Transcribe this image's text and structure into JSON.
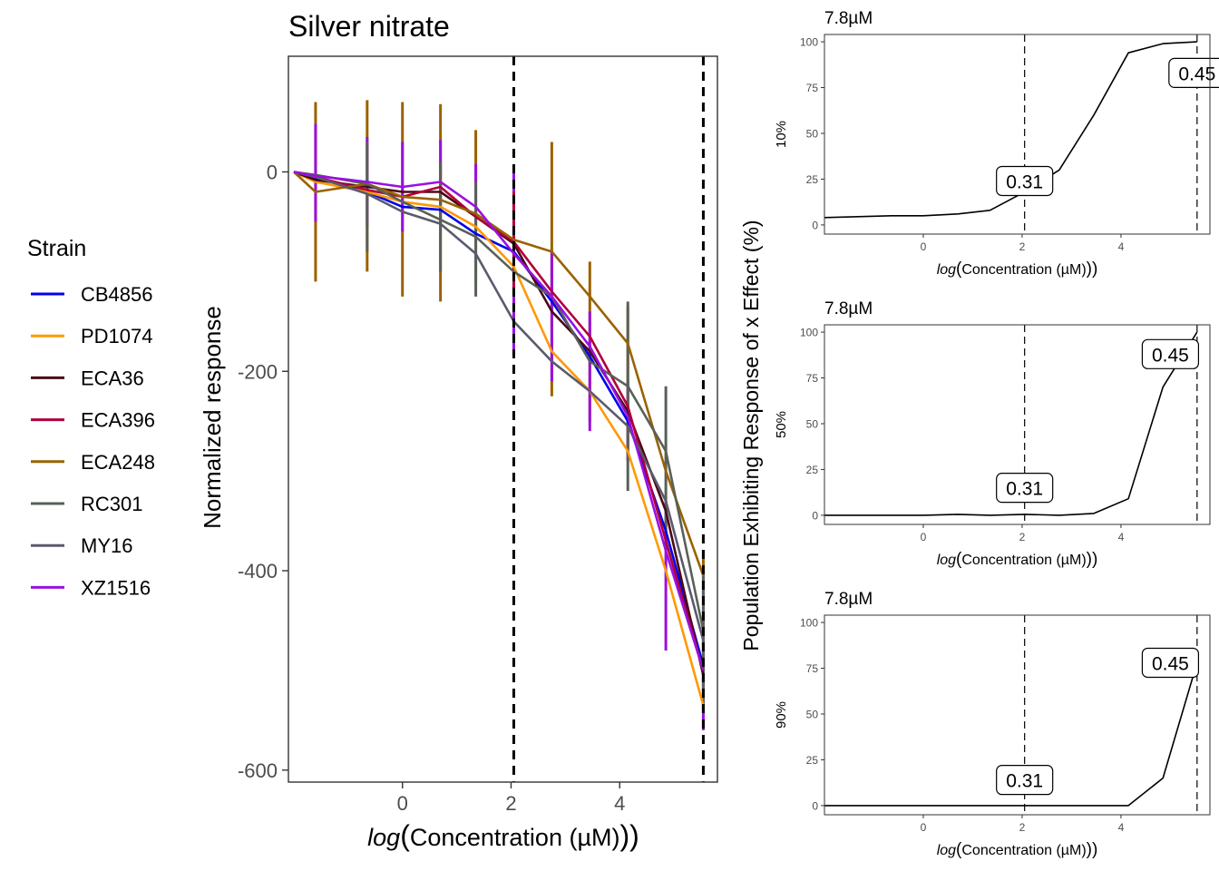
{
  "chart_data": [
    {
      "type": "line",
      "title": "Silver nitrate",
      "xlabel": {
        "italic": "log",
        "rest": "Concentration (µM)"
      },
      "ylabel": "Normalized response",
      "xlim": [
        -2.1,
        5.8
      ],
      "ylim": [
        -612,
        116
      ],
      "xticks": [
        0,
        2,
        4
      ],
      "yticks": [
        -600,
        -400,
        -200,
        0
      ],
      "vlines": [
        2.05,
        5.54
      ],
      "grid": false,
      "legend": {
        "title": "Strain",
        "position": "left",
        "entries": [
          {
            "name": "CB4856",
            "color": "#0000ee"
          },
          {
            "name": "PD1074",
            "color": "#ff9900"
          },
          {
            "name": "ECA36",
            "color": "#4b0a14"
          },
          {
            "name": "ECA396",
            "color": "#b0003a"
          },
          {
            "name": "ECA248",
            "color": "#9a6200"
          },
          {
            "name": "RC301",
            "color": "#586058"
          },
          {
            "name": "MY16",
            "color": "#5a5a6e"
          },
          {
            "name": "XZ1516",
            "color": "#9a10e0"
          }
        ]
      },
      "x": [
        -2.0,
        -1.6,
        -0.65,
        0,
        0.7,
        1.35,
        2.05,
        2.75,
        3.45,
        4.15,
        4.85,
        5.54
      ],
      "series": [
        {
          "name": "CB4856",
          "color": "#0000ee",
          "values": [
            0,
            -6,
            -20,
            -35,
            -38,
            -62,
            -80,
            -130,
            -185,
            -250,
            -360,
            -495
          ]
        },
        {
          "name": "PD1074",
          "color": "#ff9900",
          "values": [
            0,
            -10,
            -20,
            -30,
            -35,
            -55,
            -95,
            -180,
            -220,
            -280,
            -400,
            -535
          ]
        },
        {
          "name": "ECA36",
          "color": "#4b0a14",
          "values": [
            0,
            -8,
            -15,
            -20,
            -20,
            -45,
            -72,
            -140,
            -180,
            -240,
            -340,
            -505
          ]
        },
        {
          "name": "ECA396",
          "color": "#b0003a",
          "values": [
            0,
            -5,
            -18,
            -25,
            -15,
            -45,
            -70,
            -120,
            -165,
            -235,
            -370,
            -500
          ]
        },
        {
          "name": "ECA248",
          "color": "#9a6200",
          "values": [
            0,
            -20,
            -12,
            -25,
            -28,
            -42,
            -68,
            -80,
            -125,
            -172,
            -300,
            -405
          ]
        },
        {
          "name": "RC301",
          "color": "#586058",
          "values": [
            0,
            -3,
            -12,
            -30,
            -48,
            -65,
            -100,
            -125,
            -190,
            -215,
            -280,
            -460
          ]
        },
        {
          "name": "MY16",
          "color": "#5a5a6e",
          "values": [
            0,
            -5,
            -22,
            -40,
            -52,
            -82,
            -150,
            -190,
            -220,
            -255,
            -330,
            -470
          ]
        },
        {
          "name": "XZ1516",
          "color": "#9a10e0",
          "values": [
            0,
            -4,
            -10,
            -15,
            -10,
            -35,
            -82,
            -125,
            -175,
            -245,
            -380,
            -500
          ]
        }
      ],
      "errorbars": [
        {
          "series": "ECA248",
          "x": [
            -1.6,
            -0.65,
            0,
            0.7,
            1.35,
            2.75,
            3.45,
            4.15,
            5.54
          ],
          "lo": [
            -110,
            -100,
            -125,
            -130,
            -110,
            -225,
            -250,
            -290,
            -540
          ],
          "hi": [
            70,
            72,
            70,
            68,
            42,
            30,
            -90,
            -135,
            -380
          ]
        },
        {
          "series": "XZ1516",
          "x": [
            -1.6,
            -0.65,
            0,
            0.7,
            1.35,
            2.05,
            2.75,
            3.45,
            4.15,
            4.85,
            5.54
          ],
          "lo": [
            -50,
            -55,
            -60,
            -50,
            -70,
            -180,
            -210,
            -260,
            -290,
            -480,
            -560
          ],
          "hi": [
            48,
            35,
            30,
            32,
            8,
            0,
            -80,
            -140,
            -210,
            -330,
            -470
          ]
        },
        {
          "series": "RC301",
          "x": [
            -0.65,
            0.7,
            1.35,
            4.15,
            4.85,
            5.54
          ],
          "lo": [
            -80,
            -100,
            -125,
            -320,
            -360,
            -540
          ],
          "hi": [
            30,
            10,
            -10,
            -130,
            -215,
            -400
          ]
        },
        {
          "series": "ECA396",
          "x": [
            2.05
          ],
          "lo": [
            -120
          ],
          "hi": [
            -20
          ]
        }
      ]
    },
    {
      "type": "line",
      "title": "7.8µM",
      "ylabel": "10%",
      "xlabel": {
        "italic": "log",
        "rest": "Concentration (µM)"
      },
      "xlim": [
        -2.0,
        5.8
      ],
      "ylim": [
        -5,
        104
      ],
      "xticks": [
        0,
        2,
        4
      ],
      "yticks": [
        0,
        25,
        50,
        75,
        100
      ],
      "vlines": [
        2.05,
        5.54
      ],
      "labels": [
        {
          "text": "0.31",
          "x": 2.05,
          "y": 24
        },
        {
          "text": "0.45",
          "x": 5.54,
          "y": 83
        }
      ],
      "x": [
        -2.0,
        -0.65,
        0,
        0.7,
        1.35,
        2.05,
        2.75,
        3.45,
        4.15,
        4.85,
        5.54
      ],
      "values": [
        4,
        5,
        5,
        6,
        8,
        18,
        30,
        60,
        94,
        99,
        100
      ]
    },
    {
      "type": "line",
      "title": "7.8µM",
      "ylabel": "50%",
      "xlabel": {
        "italic": "log",
        "rest": "Concentration (µM)"
      },
      "xlim": [
        -2.0,
        5.8
      ],
      "ylim": [
        -5,
        104
      ],
      "xticks": [
        0,
        2,
        4
      ],
      "yticks": [
        0,
        25,
        50,
        75,
        100
      ],
      "vlines": [
        2.05,
        5.54
      ],
      "labels": [
        {
          "text": "0.31",
          "x": 2.05,
          "y": 15
        },
        {
          "text": "0.45",
          "x": 5.0,
          "y": 88
        }
      ],
      "x": [
        -2.0,
        -0.65,
        0,
        0.7,
        1.35,
        2.05,
        2.75,
        3.45,
        4.15,
        4.85,
        5.54
      ],
      "values": [
        0,
        0,
        0,
        0.5,
        0,
        0.5,
        0,
        1,
        9,
        70,
        100
      ]
    },
    {
      "type": "line",
      "title": "7.8µM",
      "ylabel": "90%",
      "xlabel": {
        "italic": "log",
        "rest": "Concentration (µM)"
      },
      "xlim": [
        -2.0,
        5.8
      ],
      "ylim": [
        -5,
        104
      ],
      "xticks": [
        0,
        2,
        4
      ],
      "yticks": [
        0,
        25,
        50,
        75,
        100
      ],
      "vlines": [
        2.05,
        5.54
      ],
      "labels": [
        {
          "text": "0.31",
          "x": 2.05,
          "y": 14
        },
        {
          "text": "0.45",
          "x": 5.0,
          "y": 78
        }
      ],
      "x": [
        -2.0,
        -0.65,
        0,
        0.7,
        1.35,
        2.05,
        2.75,
        3.45,
        4.15,
        4.85,
        5.54
      ],
      "values": [
        0,
        0,
        0,
        0,
        0,
        0,
        0,
        0,
        0,
        15,
        78
      ]
    }
  ],
  "shared_ylabel": "Population Exhibiting Response of x Effect (%)"
}
